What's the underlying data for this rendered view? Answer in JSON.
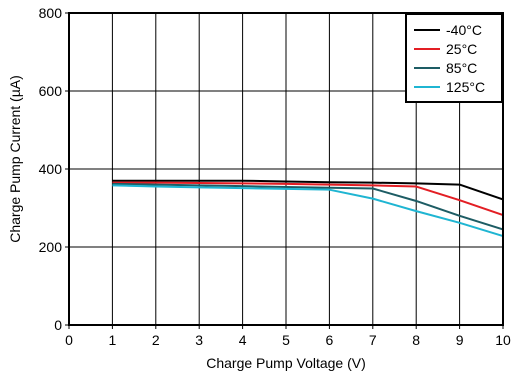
{
  "chart_data": {
    "type": "line",
    "title": "",
    "xlabel": "Charge Pump Voltage (V)",
    "ylabel": "Charge Pump Current (µA)",
    "xlim": [
      0,
      10
    ],
    "ylim": [
      0,
      800
    ],
    "x_ticks": [
      "0",
      "1",
      "2",
      "3",
      "4",
      "5",
      "6",
      "7",
      "8",
      "9",
      "10"
    ],
    "y_ticks": [
      "0",
      "200",
      "400",
      "600",
      "800"
    ],
    "grid": true,
    "legend_position": "top-right",
    "series": [
      {
        "name": "-40°C",
        "color": "#000000",
        "x": [
          1,
          2,
          3,
          4,
          5,
          6,
          7,
          8,
          9,
          10
        ],
        "y": [
          370,
          370,
          370,
          370,
          368,
          366,
          365,
          363,
          360,
          322
        ]
      },
      {
        "name": "25°C",
        "color": "#e31e24",
        "x": [
          1,
          2,
          3,
          4,
          5,
          6,
          7,
          8,
          9,
          10
        ],
        "y": [
          365,
          365,
          364,
          363,
          362,
          360,
          358,
          355,
          320,
          282
        ]
      },
      {
        "name": "85°C",
        "color": "#1d5c64",
        "x": [
          1,
          2,
          3,
          4,
          5,
          6,
          7,
          8,
          9,
          10
        ],
        "y": [
          362,
          360,
          358,
          356,
          354,
          352,
          350,
          318,
          280,
          245
        ]
      },
      {
        "name": "125°C",
        "color": "#1fb5d2",
        "x": [
          1,
          2,
          3,
          4,
          5,
          6,
          7,
          8,
          9,
          10
        ],
        "y": [
          358,
          355,
          353,
          351,
          349,
          347,
          324,
          292,
          262,
          228
        ]
      }
    ]
  }
}
